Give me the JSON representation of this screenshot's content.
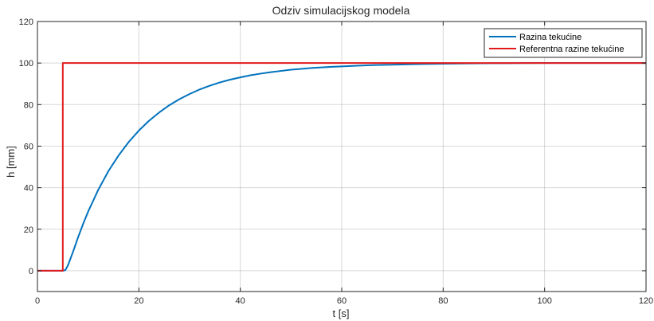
{
  "chart_data": {
    "type": "line",
    "title": "Odziv simulacijskog modela",
    "xlabel": "t [s]",
    "ylabel": "h [mm]",
    "xlim": [
      0,
      120
    ],
    "ylim": [
      -10,
      120
    ],
    "xticks": [
      0,
      20,
      40,
      60,
      80,
      100,
      120
    ],
    "yticks": [
      0,
      20,
      40,
      60,
      80,
      100,
      120
    ],
    "grid": true,
    "legend_position": "top-right",
    "series": [
      {
        "name": "Razina tekućine",
        "color": "#0072BD",
        "x": [
          0,
          5,
          5.5,
          6,
          7,
          8,
          9,
          10,
          12,
          14,
          16,
          18,
          20,
          22,
          24,
          26,
          28,
          30,
          32,
          34,
          36,
          38,
          40,
          42,
          44,
          46,
          48,
          50,
          52,
          54,
          56,
          58,
          60,
          63,
          66,
          70,
          75,
          80,
          85,
          90,
          95,
          100,
          110,
          120
        ],
        "y": [
          0,
          0,
          0.3,
          2.5,
          9,
          16,
          22.5,
          28.5,
          39,
          48,
          55.5,
          62,
          67.5,
          72.2,
          76.2,
          79.7,
          82.6,
          85.1,
          87.3,
          89.1,
          90.7,
          92.0,
          93.1,
          94.1,
          94.9,
          95.6,
          96.2,
          96.8,
          97.2,
          97.6,
          97.9,
          98.2,
          98.4,
          98.7,
          99.0,
          99.2,
          99.5,
          99.7,
          99.8,
          99.9,
          99.95,
          100,
          100,
          100
        ]
      },
      {
        "name": "Referentna razine tekućine",
        "color": "#E31A1C",
        "x": [
          0,
          5,
          5,
          120
        ],
        "y": [
          0,
          0,
          100,
          100
        ]
      }
    ]
  }
}
